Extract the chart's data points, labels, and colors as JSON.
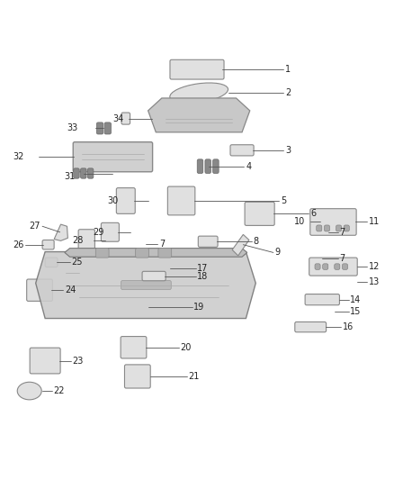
{
  "bg_color": "#ffffff",
  "line_color": "#555555",
  "part_fill": "#e0e0e0",
  "part_edge": "#888888",
  "dark_gray": "#999999",
  "text_color": "#222222"
}
